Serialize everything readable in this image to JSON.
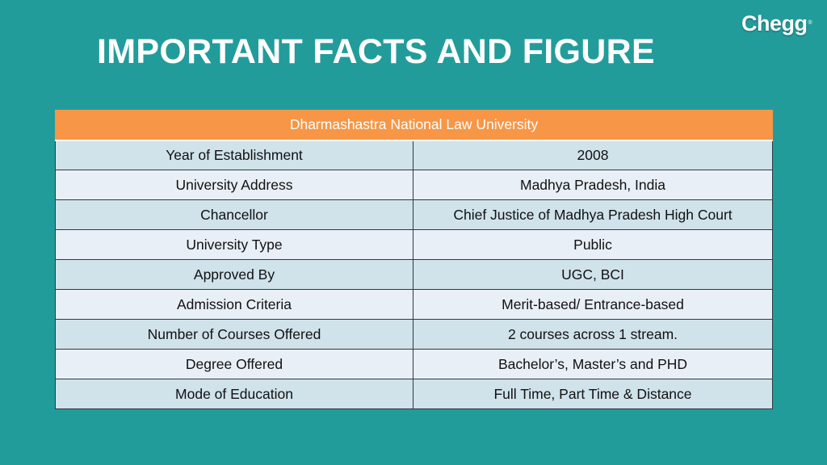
{
  "slide": {
    "title": "IMPORTANT FACTS AND FIGURE",
    "logo_text": "Chegg",
    "logo_mark": "®"
  },
  "colors": {
    "background": "#229c9b",
    "header_orange": "#f79646",
    "row_band_dark": "#d0e2ea",
    "row_band_light": "#e9eff6"
  },
  "table": {
    "header": "Dharmashastra National Law University",
    "rows": [
      {
        "label": "Year of Establishment",
        "value": "2008"
      },
      {
        "label": "University Address",
        "value": "Madhya Pradesh, India"
      },
      {
        "label": "Chancellor",
        "value": "Chief Justice of Madhya Pradesh High Court"
      },
      {
        "label": "University Type",
        "value": "Public"
      },
      {
        "label": "Approved By",
        "value": "UGC, BCI"
      },
      {
        "label": "Admission Criteria",
        "value": "Merit-based/ Entrance-based"
      },
      {
        "label": "Number of Courses Offered",
        "value": "2 courses across 1 stream."
      },
      {
        "label": "Degree Offered",
        "value": "Bachelor’s, Master’s and PHD"
      },
      {
        "label": "Mode of Education",
        "value": "Full Time, Part Time & Distance"
      }
    ]
  }
}
